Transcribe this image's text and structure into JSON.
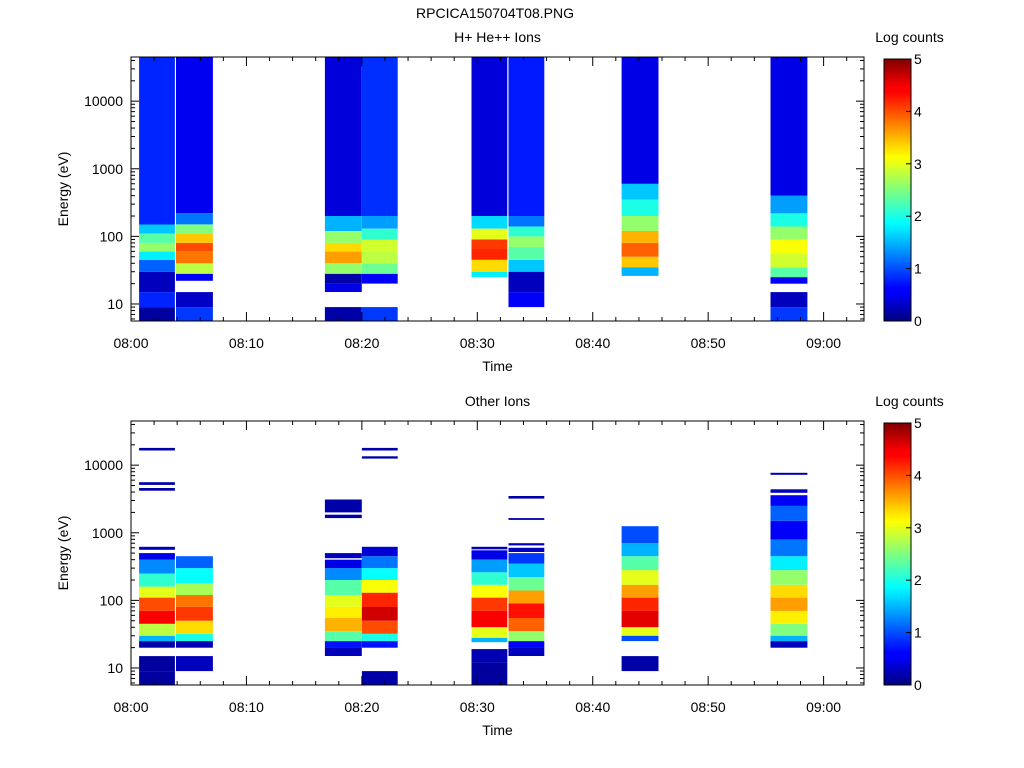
{
  "figure_title": "RPCICA150704T08.PNG",
  "chart_data": [
    {
      "type": "heatmap",
      "title": "H+ He++ Ions",
      "xlabel": "Time",
      "ylabel": "Energy (eV)",
      "y_scale": "log",
      "y_range_eV": [
        5.6,
        45000
      ],
      "x_range_min": [
        0,
        63.5
      ],
      "x_ticks": [
        "08:00",
        "08:10",
        "08:20",
        "08:30",
        "08:40",
        "08:50",
        "09:00"
      ],
      "x_tick_minutes": [
        0,
        10,
        20,
        30,
        40,
        50,
        60
      ],
      "y_ticks": [
        "10",
        "100",
        "1000",
        "10000"
      ],
      "y_tick_values": [
        10,
        100,
        1000,
        10000
      ],
      "colorbar": {
        "label": "Log counts",
        "range": [
          0,
          5
        ],
        "ticks": [
          "0",
          "1",
          "2",
          "3",
          "4",
          "5"
        ]
      },
      "columns": [
        {
          "t0": 0.7,
          "t1": 3.8,
          "bands": [
            [
              5.6,
              9,
              0.15
            ],
            [
              9,
              15,
              0.8
            ],
            [
              15,
              30,
              0.3
            ],
            [
              30,
              45,
              1.1
            ],
            [
              45,
              60,
              1.8
            ],
            [
              60,
              80,
              2.6
            ],
            [
              80,
              110,
              2.3
            ],
            [
              110,
              150,
              1.6
            ],
            [
              150,
              45000,
              0.8
            ]
          ]
        },
        {
          "t0": 3.9,
          "t1": 7.1,
          "bands": [
            [
              5.6,
              9,
              0.9
            ],
            [
              9,
              15,
              0.35
            ],
            [
              22,
              28,
              0.6
            ],
            [
              28,
              40,
              2.8
            ],
            [
              40,
              60,
              3.8
            ],
            [
              60,
              80,
              4.0
            ],
            [
              80,
              110,
              3.4
            ],
            [
              110,
              150,
              2.5
            ],
            [
              150,
              220,
              1.2
            ],
            [
              220,
              45000,
              0.55
            ]
          ]
        },
        {
          "t0": 16.8,
          "t1": 20.0,
          "bands": [
            [
              5.6,
              9,
              0.2
            ],
            [
              15,
              20,
              0.5
            ],
            [
              20,
              28,
              0.2
            ],
            [
              28,
              40,
              2.6
            ],
            [
              40,
              60,
              3.6
            ],
            [
              60,
              80,
              3.3
            ],
            [
              80,
              120,
              2.6
            ],
            [
              120,
              200,
              1.5
            ],
            [
              200,
              45000,
              0.45
            ]
          ]
        },
        {
          "t0": 20.0,
          "t1": 23.1,
          "bands": [
            [
              5.6,
              9,
              0.9
            ],
            [
              20,
              28,
              0.6
            ],
            [
              28,
              40,
              2.4
            ],
            [
              40,
              60,
              2.8
            ],
            [
              60,
              90,
              2.9
            ],
            [
              90,
              130,
              2.1
            ],
            [
              130,
              200,
              1.4
            ],
            [
              200,
              45000,
              0.85
            ]
          ]
        },
        {
          "t0": 29.5,
          "t1": 32.6,
          "bands": [
            [
              25,
              30,
              1.8
            ],
            [
              30,
              45,
              3.3
            ],
            [
              45,
              65,
              4.2
            ],
            [
              65,
              90,
              4.1
            ],
            [
              90,
              130,
              3.0
            ],
            [
              130,
              200,
              1.7
            ],
            [
              200,
              45000,
              0.45
            ]
          ]
        },
        {
          "t0": 32.7,
          "t1": 35.8,
          "bands": [
            [
              9,
              15,
              0.6
            ],
            [
              15,
              30,
              0.3
            ],
            [
              30,
              45,
              1.6
            ],
            [
              45,
              70,
              2.3
            ],
            [
              70,
              100,
              2.6
            ],
            [
              100,
              140,
              2.1
            ],
            [
              140,
              200,
              1.2
            ],
            [
              200,
              45000,
              0.75
            ]
          ]
        },
        {
          "t0": 42.5,
          "t1": 45.7,
          "bands": [
            [
              26,
              35,
              1.5
            ],
            [
              35,
              50,
              3.4
            ],
            [
              50,
              80,
              3.9
            ],
            [
              80,
              120,
              3.5
            ],
            [
              120,
              200,
              2.6
            ],
            [
              200,
              350,
              2.0
            ],
            [
              350,
              600,
              1.6
            ],
            [
              600,
              45000,
              0.5
            ]
          ]
        },
        {
          "t0": 55.4,
          "t1": 58.6,
          "bands": [
            [
              5.6,
              9,
              0.9
            ],
            [
              9,
              15,
              0.3
            ],
            [
              20,
              25,
              0.6
            ],
            [
              25,
              35,
              2.3
            ],
            [
              35,
              55,
              2.9
            ],
            [
              55,
              90,
              3.1
            ],
            [
              90,
              140,
              2.6
            ],
            [
              140,
              220,
              2.0
            ],
            [
              220,
              400,
              1.4
            ],
            [
              400,
              45000,
              0.5
            ]
          ]
        }
      ]
    },
    {
      "type": "heatmap",
      "title": "Other Ions",
      "xlabel": "Time",
      "ylabel": "Energy (eV)",
      "y_scale": "log",
      "y_range_eV": [
        5.6,
        45000
      ],
      "x_range_min": [
        0,
        63.5
      ],
      "x_ticks": [
        "08:00",
        "08:10",
        "08:20",
        "08:30",
        "08:40",
        "08:50",
        "09:00"
      ],
      "x_tick_minutes": [
        0,
        10,
        20,
        30,
        40,
        50,
        60
      ],
      "y_ticks": [
        "10",
        "100",
        "1000",
        "10000"
      ],
      "y_tick_values": [
        10,
        100,
        1000,
        10000
      ],
      "colorbar": {
        "label": "Log counts",
        "range": [
          0,
          5
        ],
        "ticks": [
          "0",
          "1",
          "2",
          "3",
          "4",
          "5"
        ]
      },
      "columns": [
        {
          "t0": 0.7,
          "t1": 3.8,
          "bands": [
            [
              5.6,
              9,
              0.15
            ],
            [
              9,
              15,
              0.15
            ],
            [
              20,
              25,
              0.2
            ],
            [
              25,
              30,
              1.5
            ],
            [
              30,
              45,
              2.8
            ],
            [
              45,
              70,
              4.4
            ],
            [
              70,
              110,
              4.0
            ],
            [
              110,
              160,
              3.0
            ],
            [
              160,
              250,
              2.1
            ],
            [
              250,
              400,
              1.3
            ],
            [
              400,
              500,
              0.5
            ],
            [
              560,
              620,
              0.3
            ],
            [
              4200,
              4600,
              0.2
            ],
            [
              5100,
              5600,
              0.2
            ],
            [
              16500,
              18000,
              0.2
            ]
          ]
        },
        {
          "t0": 3.9,
          "t1": 7.1,
          "bands": [
            [
              9,
              15,
              0.3
            ],
            [
              20,
              25,
              0.25
            ],
            [
              25,
              32,
              2.0
            ],
            [
              32,
              50,
              3.3
            ],
            [
              50,
              80,
              4.1
            ],
            [
              80,
              120,
              3.8
            ],
            [
              120,
              180,
              2.7
            ],
            [
              180,
              300,
              1.9
            ],
            [
              300,
              450,
              1.1
            ]
          ]
        },
        {
          "t0": 16.8,
          "t1": 20.0,
          "bands": [
            [
              15,
              20,
              0.3
            ],
            [
              20,
              25,
              0.7
            ],
            [
              25,
              35,
              2.3
            ],
            [
              35,
              55,
              3.5
            ],
            [
              55,
              80,
              3.2
            ],
            [
              80,
              120,
              3.0
            ],
            [
              120,
              200,
              2.3
            ],
            [
              200,
              300,
              1.3
            ],
            [
              300,
              400,
              0.5
            ],
            [
              420,
              500,
              0.3
            ],
            [
              1650,
              1850,
              0.2
            ],
            [
              2000,
              3100,
              0.2
            ]
          ]
        },
        {
          "t0": 20.0,
          "t1": 23.1,
          "bands": [
            [
              5.6,
              9,
              0.2
            ],
            [
              20,
              25,
              0.7
            ],
            [
              25,
              32,
              2.0
            ],
            [
              32,
              50,
              4.0
            ],
            [
              50,
              80,
              4.6
            ],
            [
              80,
              130,
              4.2
            ],
            [
              130,
              200,
              3.1
            ],
            [
              200,
              300,
              1.9
            ],
            [
              300,
              450,
              1.2
            ],
            [
              450,
              620,
              0.4
            ],
            [
              12500,
              13500,
              0.2
            ],
            [
              16500,
              18000,
              0.2
            ]
          ]
        },
        {
          "t0": 29.5,
          "t1": 32.6,
          "bands": [
            [
              5.6,
              12,
              0.15
            ],
            [
              12,
              19,
              0.25
            ],
            [
              24,
              28,
              1.5
            ],
            [
              28,
              40,
              3.0
            ],
            [
              40,
              70,
              4.4
            ],
            [
              70,
              110,
              4.1
            ],
            [
              110,
              170,
              3.1
            ],
            [
              170,
              260,
              2.1
            ],
            [
              260,
              400,
              1.4
            ],
            [
              400,
              550,
              0.5
            ],
            [
              570,
              620,
              0.3
            ]
          ]
        },
        {
          "t0": 32.7,
          "t1": 35.8,
          "bands": [
            [
              15,
              20,
              0.3
            ],
            [
              20,
              25,
              0.6
            ],
            [
              25,
              35,
              2.6
            ],
            [
              35,
              55,
              3.9
            ],
            [
              55,
              90,
              4.3
            ],
            [
              90,
              140,
              3.6
            ],
            [
              140,
              220,
              2.4
            ],
            [
              220,
              350,
              1.6
            ],
            [
              350,
              500,
              0.9
            ],
            [
              520,
              600,
              0.3
            ],
            [
              650,
              700,
              0.3
            ],
            [
              1550,
              1650,
              0.2
            ],
            [
              3200,
              3500,
              0.2
            ]
          ]
        },
        {
          "t0": 42.5,
          "t1": 45.7,
          "bands": [
            [
              9,
              15,
              0.2
            ],
            [
              25,
              30,
              1.0
            ],
            [
              30,
              40,
              3.0
            ],
            [
              40,
              70,
              4.5
            ],
            [
              70,
              110,
              4.2
            ],
            [
              110,
              170,
              3.6
            ],
            [
              170,
              280,
              3.0
            ],
            [
              280,
              450,
              2.3
            ],
            [
              450,
              700,
              1.5
            ],
            [
              700,
              1250,
              1.0
            ]
          ]
        },
        {
          "t0": 55.4,
          "t1": 58.6,
          "bands": [
            [
              20,
              25,
              0.3
            ],
            [
              25,
              30,
              1.5
            ],
            [
              30,
              45,
              2.5
            ],
            [
              45,
              70,
              3.2
            ],
            [
              70,
              110,
              3.6
            ],
            [
              110,
              170,
              3.3
            ],
            [
              170,
              280,
              2.6
            ],
            [
              280,
              450,
              1.8
            ],
            [
              450,
              800,
              1.2
            ],
            [
              800,
              1500,
              0.6
            ],
            [
              1500,
              2500,
              1.1
            ],
            [
              2500,
              3600,
              0.6
            ],
            [
              3900,
              4400,
              0.3
            ],
            [
              7200,
              7700,
              0.2
            ]
          ]
        }
      ]
    }
  ]
}
